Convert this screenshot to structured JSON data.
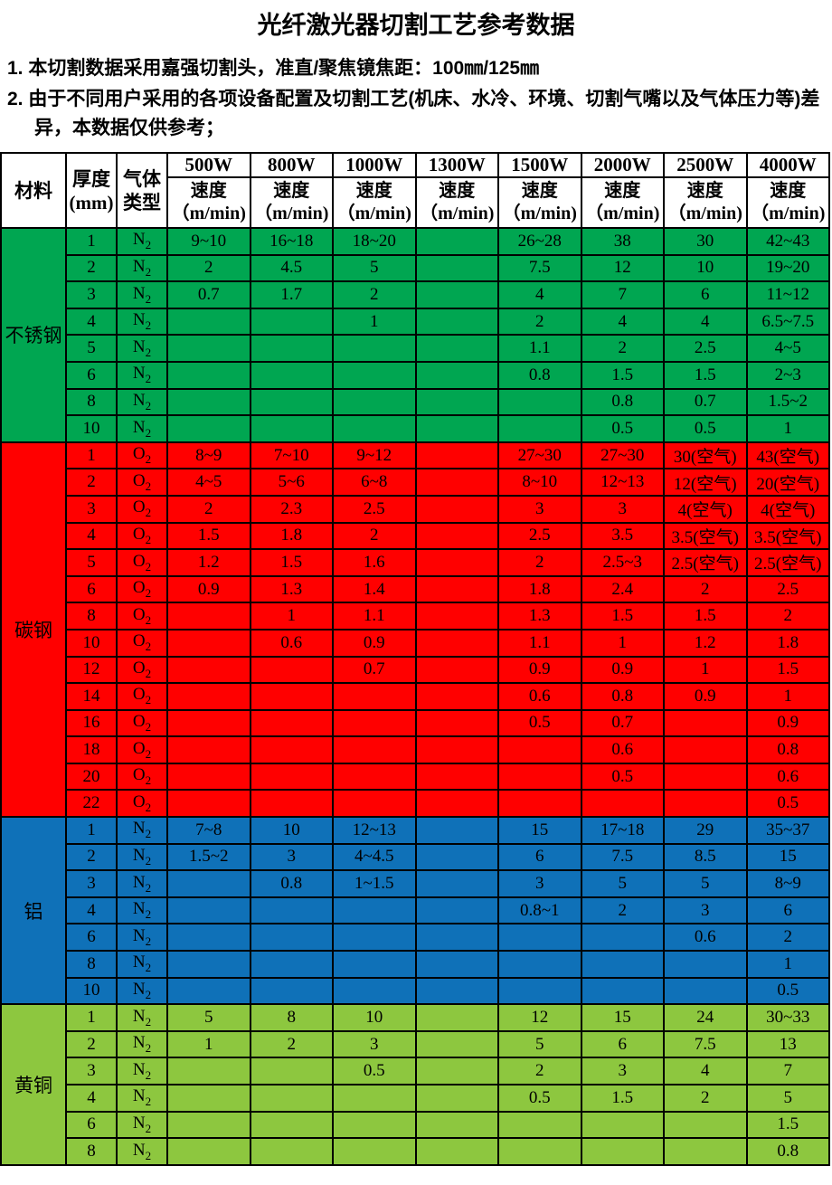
{
  "title": "光纤激光器切割工艺参考数据",
  "notes": {
    "note1": "1. 本切割数据采用嘉强切割头，准直/聚焦镜焦距：100㎜/125㎜",
    "note2": "2. 由于不同用户采用的各项设备配置及切割工艺(机床、水冷、环境、切割气嘴以及气体压力等)差异，本数据仅供参考；"
  },
  "table": {
    "header": {
      "material": "材料",
      "thickness_line1": "厚度",
      "thickness_line2": "(mm)",
      "gas_line1": "气体",
      "gas_line2": "类型",
      "powers": [
        "500W",
        "800W",
        "1000W",
        "1300W",
        "1500W",
        "2000W",
        "2500W",
        "4000W"
      ],
      "speed_label": "速度",
      "speed_unit": "（m/min)"
    },
    "sections": [
      {
        "material": "不锈钢",
        "color": "#00A651",
        "rows": [
          {
            "t": "1",
            "gas": "N2",
            "v": [
              "9~10",
              "16~18",
              "18~20",
              "",
              "26~28",
              "38",
              "30",
              "42~43"
            ]
          },
          {
            "t": "2",
            "gas": "N2",
            "v": [
              "2",
              "4.5",
              "5",
              "",
              "7.5",
              "12",
              "10",
              "19~20"
            ]
          },
          {
            "t": "3",
            "gas": "N2",
            "v": [
              "0.7",
              "1.7",
              "2",
              "",
              "4",
              "7",
              "6",
              "11~12"
            ]
          },
          {
            "t": "4",
            "gas": "N2",
            "v": [
              "",
              "",
              "1",
              "",
              "2",
              "4",
              "4",
              "6.5~7.5"
            ]
          },
          {
            "t": "5",
            "gas": "N2",
            "v": [
              "",
              "",
              "",
              "",
              "1.1",
              "2",
              "2.5",
              "4~5"
            ]
          },
          {
            "t": "6",
            "gas": "N2",
            "v": [
              "",
              "",
              "",
              "",
              "0.8",
              "1.5",
              "1.5",
              "2~3"
            ]
          },
          {
            "t": "8",
            "gas": "N2",
            "v": [
              "",
              "",
              "",
              "",
              "",
              "0.8",
              "0.7",
              "1.5~2"
            ]
          },
          {
            "t": "10",
            "gas": "N2",
            "v": [
              "",
              "",
              "",
              "",
              "",
              "0.5",
              "0.5",
              "1"
            ]
          }
        ]
      },
      {
        "material": "碳钢",
        "color": "#FF0000",
        "rows": [
          {
            "t": "1",
            "gas": "O2",
            "v": [
              "8~9",
              "7~10",
              "9~12",
              "",
              "27~30",
              "27~30",
              "30(空气)",
              "43(空气)"
            ]
          },
          {
            "t": "2",
            "gas": "O2",
            "v": [
              "4~5",
              "5~6",
              "6~8",
              "",
              "8~10",
              "12~13",
              "12(空气)",
              "20(空气)"
            ]
          },
          {
            "t": "3",
            "gas": "O2",
            "v": [
              "2",
              "2.3",
              "2.5",
              "",
              "3",
              "3",
              "4(空气)",
              "4(空气)"
            ]
          },
          {
            "t": "4",
            "gas": "O2",
            "v": [
              "1.5",
              "1.8",
              "2",
              "",
              "2.5",
              "3.5",
              "3.5(空气)",
              "3.5(空气)"
            ]
          },
          {
            "t": "5",
            "gas": "O2",
            "v": [
              "1.2",
              "1.5",
              "1.6",
              "",
              "2",
              "2.5~3",
              "2.5(空气)",
              "2.5(空气)"
            ]
          },
          {
            "t": "6",
            "gas": "O2",
            "v": [
              "0.9",
              "1.3",
              "1.4",
              "",
              "1.8",
              "2.4",
              "2",
              "2.5"
            ]
          },
          {
            "t": "8",
            "gas": "O2",
            "v": [
              "",
              "1",
              "1.1",
              "",
              "1.3",
              "1.5",
              "1.5",
              "2"
            ]
          },
          {
            "t": "10",
            "gas": "O2",
            "v": [
              "",
              "0.6",
              "0.9",
              "",
              "1.1",
              "1",
              "1.2",
              "1.8"
            ]
          },
          {
            "t": "12",
            "gas": "O2",
            "v": [
              "",
              "",
              "0.7",
              "",
              "0.9",
              "0.9",
              "1",
              "1.5"
            ]
          },
          {
            "t": "14",
            "gas": "O2",
            "v": [
              "",
              "",
              "",
              "",
              "0.6",
              "0.8",
              "0.9",
              "1"
            ]
          },
          {
            "t": "16",
            "gas": "O2",
            "v": [
              "",
              "",
              "",
              "",
              "0.5",
              "0.7",
              "",
              "0.9"
            ]
          },
          {
            "t": "18",
            "gas": "O2",
            "v": [
              "",
              "",
              "",
              "",
              "",
              "0.6",
              "",
              "0.8"
            ]
          },
          {
            "t": "20",
            "gas": "O2",
            "v": [
              "",
              "",
              "",
              "",
              "",
              "0.5",
              "",
              "0.6"
            ]
          },
          {
            "t": "22",
            "gas": "O2",
            "v": [
              "",
              "",
              "",
              "",
              "",
              "",
              "",
              "0.5"
            ]
          }
        ]
      },
      {
        "material": "铝",
        "color": "#0F71B8",
        "rows": [
          {
            "t": "1",
            "gas": "N2",
            "v": [
              "7~8",
              "10",
              "12~13",
              "",
              "15",
              "17~18",
              "29",
              "35~37"
            ]
          },
          {
            "t": "2",
            "gas": "N2",
            "v": [
              "1.5~2",
              "3",
              "4~4.5",
              "",
              "6",
              "7.5",
              "8.5",
              "15"
            ]
          },
          {
            "t": "3",
            "gas": "N2",
            "v": [
              "",
              "0.8",
              "1~1.5",
              "",
              "3",
              "5",
              "5",
              "8~9"
            ]
          },
          {
            "t": "4",
            "gas": "N2",
            "v": [
              "",
              "",
              "",
              "",
              "0.8~1",
              "2",
              "3",
              "6"
            ]
          },
          {
            "t": "6",
            "gas": "N2",
            "v": [
              "",
              "",
              "",
              "",
              "",
              "",
              "0.6",
              "2"
            ]
          },
          {
            "t": "8",
            "gas": "N2",
            "v": [
              "",
              "",
              "",
              "",
              "",
              "",
              "",
              "1"
            ]
          },
          {
            "t": "10",
            "gas": "N2",
            "v": [
              "",
              "",
              "",
              "",
              "",
              "",
              "",
              "0.5"
            ]
          }
        ]
      },
      {
        "material": "黄铜",
        "color": "#8DC73F",
        "rows": [
          {
            "t": "1",
            "gas": "N2",
            "v": [
              "5",
              "8",
              "10",
              "",
              "12",
              "15",
              "24",
              "30~33"
            ]
          },
          {
            "t": "2",
            "gas": "N2",
            "v": [
              "1",
              "2",
              "3",
              "",
              "5",
              "6",
              "7.5",
              "13"
            ]
          },
          {
            "t": "3",
            "gas": "N2",
            "v": [
              "",
              "",
              "0.5",
              "",
              "2",
              "3",
              "4",
              "7"
            ]
          },
          {
            "t": "4",
            "gas": "N2",
            "v": [
              "",
              "",
              "",
              "",
              "0.5",
              "1.5",
              "2",
              "5"
            ]
          },
          {
            "t": "6",
            "gas": "N2",
            "v": [
              "",
              "",
              "",
              "",
              "",
              "",
              "",
              "1.5"
            ]
          },
          {
            "t": "8",
            "gas": "N2",
            "v": [
              "",
              "",
              "",
              "",
              "",
              "",
              "",
              "0.8"
            ]
          }
        ]
      }
    ]
  }
}
